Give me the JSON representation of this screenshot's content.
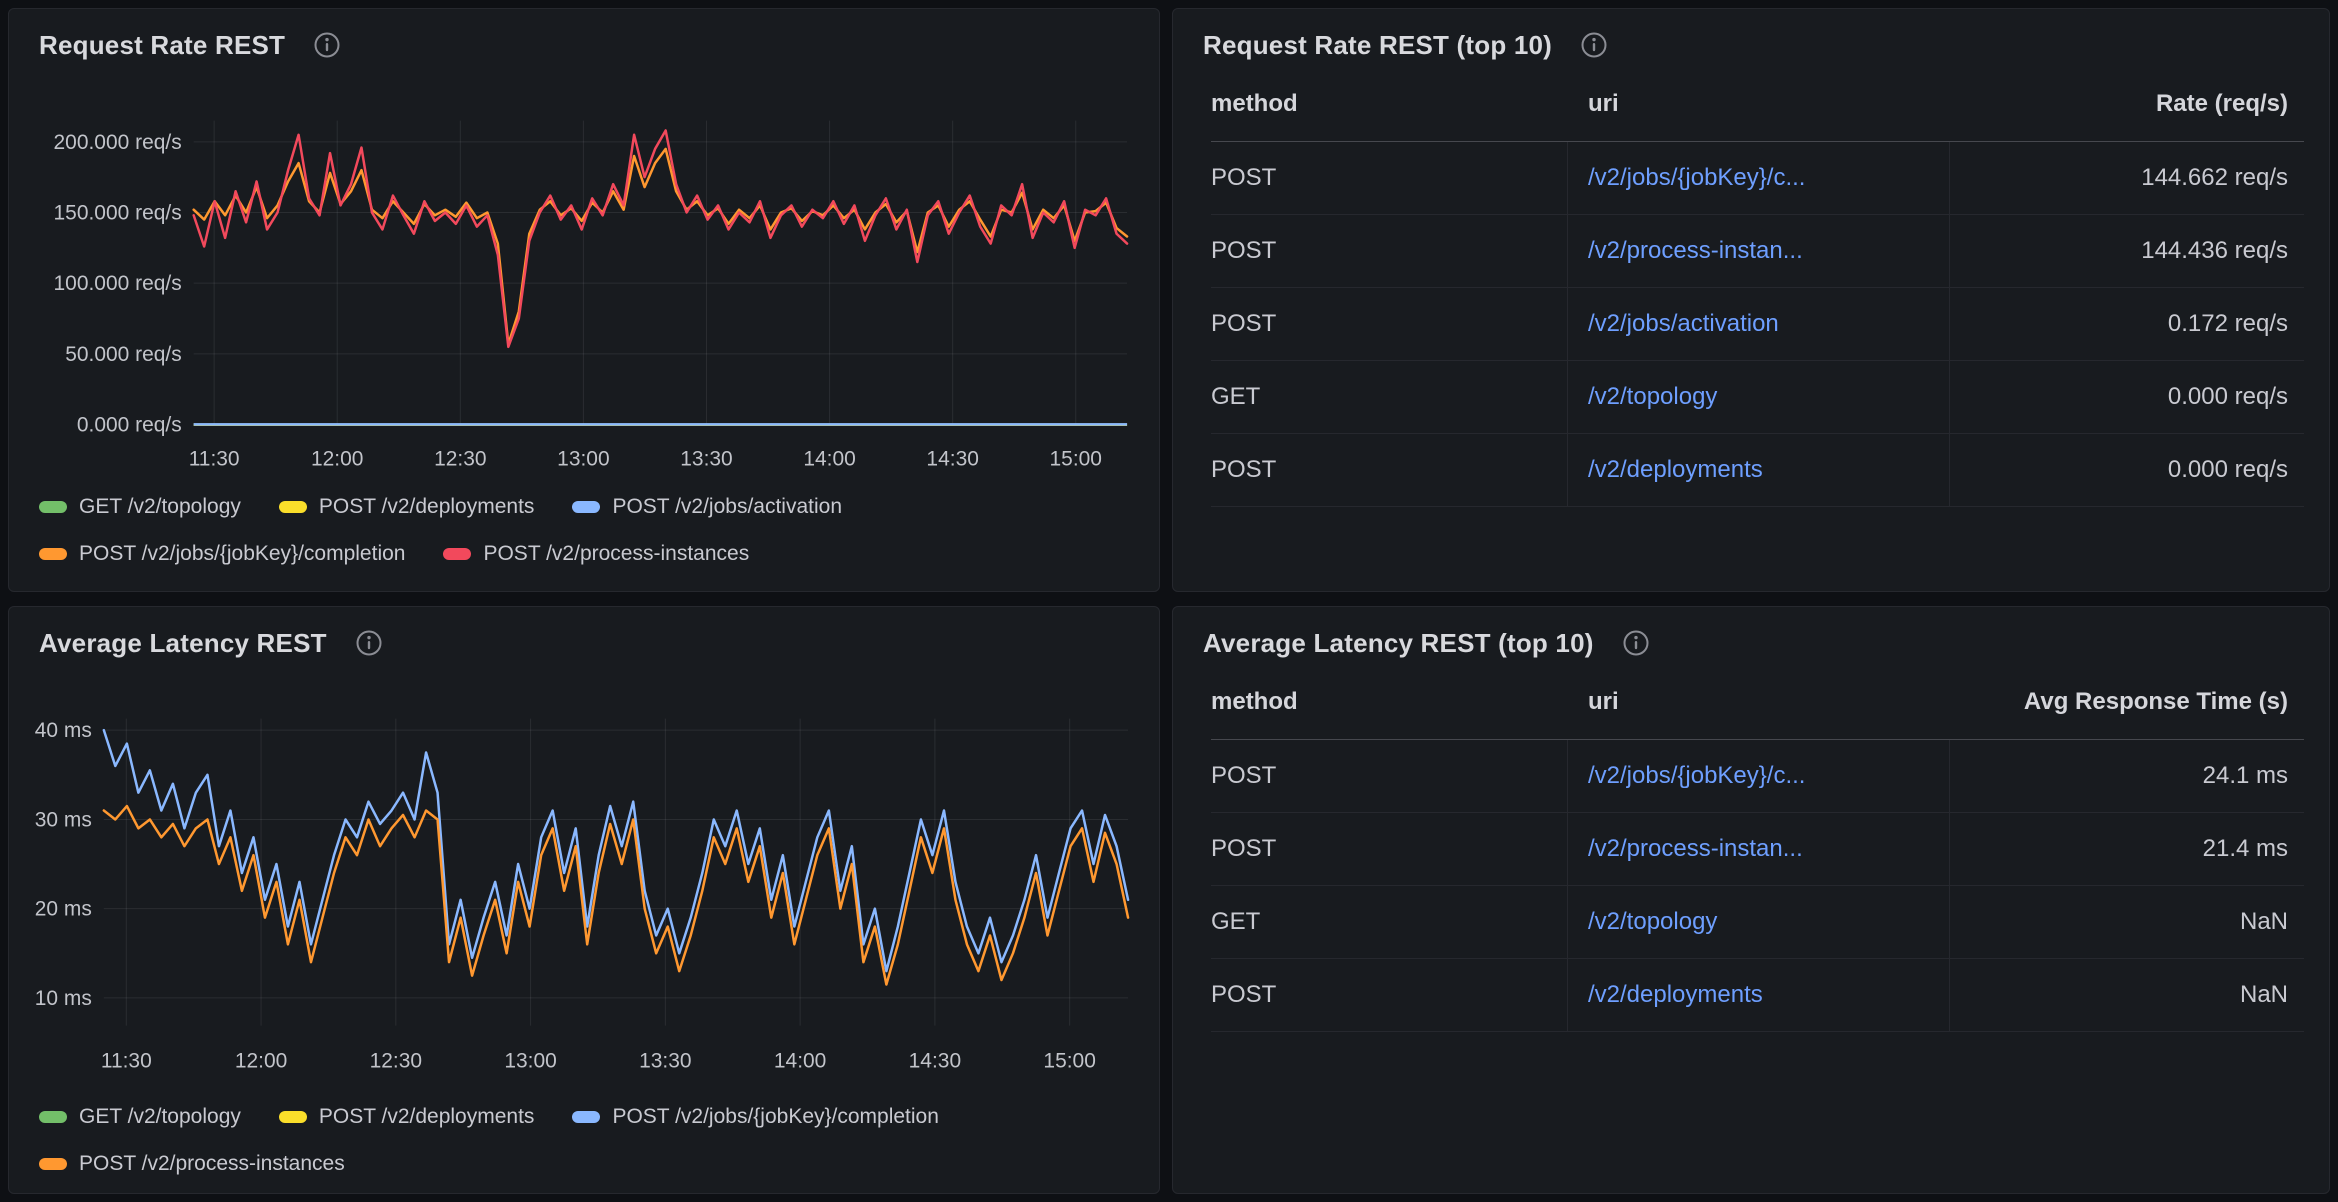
{
  "theme": {
    "page_bg": "#0e1014",
    "panel_bg": "#181b1f",
    "panel_border": "#26282e",
    "title_color": "#d8d9dd",
    "text_color": "#c9cad1",
    "axis_color": "#c2c4ca",
    "link_color": "#6e9fff",
    "grid_color": "rgba(204,204,220,0.10)",
    "series_green": "#73bf69",
    "series_yellow": "#fade2a",
    "series_blue": "#8ab8ff",
    "series_orange": "#ff9830",
    "series_red": "#f2495c"
  },
  "panels": {
    "request_rate_chart": {
      "title": "Request Rate REST"
    },
    "request_rate_table": {
      "title": "Request Rate REST (top 10)",
      "columns": [
        "method",
        "uri",
        "Rate (req/s)"
      ],
      "rows": [
        {
          "method": "POST",
          "uri": "/v2/jobs/{jobKey}/c...",
          "value": "144.662 req/s"
        },
        {
          "method": "POST",
          "uri": "/v2/process-instan...",
          "value": "144.436 req/s"
        },
        {
          "method": "POST",
          "uri": "/v2/jobs/activation",
          "value": "0.172 req/s"
        },
        {
          "method": "GET",
          "uri": "/v2/topology",
          "value": "0.000 req/s"
        },
        {
          "method": "POST",
          "uri": "/v2/deployments",
          "value": "0.000 req/s"
        }
      ]
    },
    "latency_chart": {
      "title": "Average Latency REST"
    },
    "latency_table": {
      "title": "Average Latency REST (top 10)",
      "columns": [
        "method",
        "uri",
        "Avg Response Time (s)"
      ],
      "rows": [
        {
          "method": "POST",
          "uri": "/v2/jobs/{jobKey}/c...",
          "value": "24.1 ms"
        },
        {
          "method": "POST",
          "uri": "/v2/process-instan...",
          "value": "21.4 ms"
        },
        {
          "method": "GET",
          "uri": "/v2/topology",
          "value": "NaN"
        },
        {
          "method": "POST",
          "uri": "/v2/deployments",
          "value": "NaN"
        }
      ]
    }
  },
  "chart_data": [
    {
      "type": "line",
      "title": "Request Rate REST",
      "unit": "req/s",
      "ylim": [
        0,
        215
      ],
      "grid": true,
      "legend_position": "bottom",
      "y_ticks": [
        {
          "v": 0,
          "label": "0.000 req/s"
        },
        {
          "v": 50,
          "label": "50.000 req/s"
        },
        {
          "v": 100,
          "label": "100.000 req/s"
        },
        {
          "v": 150,
          "label": "150.000 req/s"
        },
        {
          "v": 200,
          "label": "200.000 req/s"
        }
      ],
      "x_total_minutes": 227.5,
      "x_ticks": [
        {
          "m": 5,
          "label": "11:30"
        },
        {
          "m": 35,
          "label": "12:00"
        },
        {
          "m": 65,
          "label": "12:30"
        },
        {
          "m": 95,
          "label": "13:00"
        },
        {
          "m": 125,
          "label": "13:30"
        },
        {
          "m": 155,
          "label": "14:00"
        },
        {
          "m": 185,
          "label": "14:30"
        },
        {
          "m": 215,
          "label": "15:00"
        }
      ],
      "series": [
        {
          "name": "GET /v2/topology",
          "color": "#73bf69",
          "flat": 0
        },
        {
          "name": "POST /v2/deployments",
          "color": "#fade2a",
          "flat": 0
        },
        {
          "name": "POST /v2/jobs/activation",
          "color": "#8ab8ff",
          "flat": 0.172
        },
        {
          "name": "POST /v2/jobs/{jobKey}/completion",
          "color": "#ff9830",
          "values": [
            152,
            145,
            158,
            148,
            162,
            150,
            168,
            146,
            155,
            172,
            185,
            158,
            150,
            178,
            156,
            165,
            180,
            152,
            146,
            158,
            150,
            142,
            156,
            148,
            152,
            147,
            157,
            146,
            150,
            128,
            57,
            80,
            135,
            152,
            158,
            148,
            153,
            144,
            157,
            150,
            165,
            152,
            190,
            168,
            185,
            195,
            165,
            152,
            158,
            148,
            153,
            142,
            152,
            146,
            155,
            138,
            150,
            153,
            144,
            151,
            148,
            155,
            146,
            152,
            138,
            150,
            156,
            143,
            151,
            122,
            150,
            155,
            140,
            152,
            158,
            145,
            133,
            152,
            150,
            164,
            138,
            152,
            146,
            155,
            130,
            150,
            151,
            157,
            139,
            133
          ]
        },
        {
          "name": "POST /v2/process-instances",
          "color": "#f2495c",
          "values": [
            148,
            126,
            158,
            132,
            165,
            143,
            172,
            138,
            150,
            180,
            205,
            160,
            148,
            192,
            155,
            170,
            196,
            150,
            138,
            162,
            148,
            135,
            158,
            144,
            150,
            142,
            155,
            140,
            148,
            120,
            55,
            75,
            130,
            150,
            162,
            145,
            155,
            138,
            160,
            148,
            170,
            155,
            205,
            175,
            195,
            208,
            170,
            150,
            162,
            145,
            155,
            138,
            150,
            143,
            158,
            132,
            148,
            155,
            140,
            152,
            146,
            158,
            142,
            155,
            130,
            148,
            160,
            138,
            152,
            115,
            148,
            158,
            135,
            150,
            162,
            140,
            128,
            155,
            148,
            170,
            132,
            150,
            143,
            158,
            125,
            152,
            148,
            160,
            135,
            128
          ]
        }
      ]
    },
    {
      "type": "line",
      "title": "Average Latency REST",
      "unit": "ms",
      "ylim": [
        6.9,
        41.3
      ],
      "grid": true,
      "legend_position": "bottom",
      "y_ticks": [
        {
          "v": 10,
          "label": "10 ms"
        },
        {
          "v": 20,
          "label": "20 ms"
        },
        {
          "v": 30,
          "label": "30 ms"
        },
        {
          "v": 40,
          "label": "40 ms"
        }
      ],
      "x_total_minutes": 228,
      "x_ticks": [
        {
          "m": 5,
          "label": "11:30"
        },
        {
          "m": 35,
          "label": "12:00"
        },
        {
          "m": 65,
          "label": "12:30"
        },
        {
          "m": 95,
          "label": "13:00"
        },
        {
          "m": 125,
          "label": "13:30"
        },
        {
          "m": 155,
          "label": "14:00"
        },
        {
          "m": 185,
          "label": "14:30"
        },
        {
          "m": 215,
          "label": "15:00"
        }
      ],
      "series": [
        {
          "name": "GET /v2/topology",
          "color": "#73bf69",
          "values": null
        },
        {
          "name": "POST /v2/deployments",
          "color": "#fade2a",
          "values": null
        },
        {
          "name": "POST /v2/jobs/{jobKey}/completion",
          "color": "#8ab8ff",
          "values": [
            40,
            36,
            38.5,
            33,
            35.5,
            31,
            34,
            29,
            33,
            35,
            27,
            31,
            24,
            28,
            21,
            25,
            18,
            23,
            16,
            21,
            26,
            30,
            28,
            32,
            29.5,
            31,
            33,
            30,
            37.5,
            33,
            16,
            21,
            14.5,
            19,
            23,
            17,
            25,
            20,
            28,
            31,
            24,
            29,
            18,
            26,
            31.5,
            27,
            32,
            22,
            17,
            20,
            15,
            19,
            24,
            30,
            27,
            31,
            25,
            29,
            21,
            26,
            18,
            23,
            28,
            31,
            22,
            27,
            16,
            20,
            13,
            18,
            24,
            30,
            26,
            31,
            23,
            18,
            15,
            19,
            14,
            17,
            21,
            26,
            19,
            24,
            29,
            31,
            25,
            30.5,
            27,
            21
          ]
        },
        {
          "name": "POST /v2/process-instances",
          "color": "#ff9830",
          "values": [
            31,
            30,
            31.5,
            29,
            30,
            28,
            29.5,
            27,
            29,
            30,
            25,
            28,
            22,
            26,
            19,
            23,
            16,
            21,
            14,
            19,
            24,
            28,
            26,
            30,
            27,
            29,
            30.5,
            28,
            31,
            30,
            14,
            19,
            12.5,
            17,
            21,
            15,
            23,
            18,
            26,
            29,
            22,
            27,
            16,
            24,
            29.5,
            25,
            30,
            20,
            15,
            18,
            13,
            17,
            22,
            28,
            25,
            29,
            23,
            27,
            19,
            24,
            16,
            21,
            26,
            29,
            20,
            25,
            14,
            18,
            11.5,
            16,
            22,
            28,
            24,
            29,
            21,
            16,
            13,
            17,
            12,
            15,
            19,
            24,
            17,
            22,
            27,
            29,
            23,
            28.5,
            25,
            19
          ]
        }
      ]
    }
  ]
}
